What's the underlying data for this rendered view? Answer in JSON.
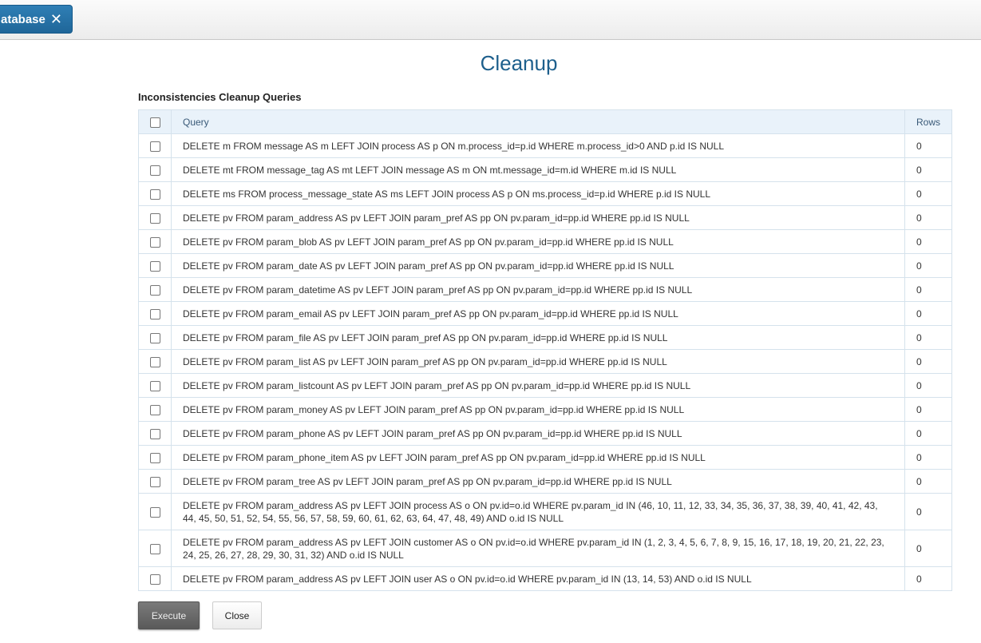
{
  "tab": {
    "label": "atabase",
    "close_icon": "close-icon"
  },
  "page_title": "Cleanup",
  "section_title": "Inconsistencies Cleanup Queries",
  "table": {
    "headers": {
      "query": "Query",
      "rows": "Rows"
    },
    "rows": [
      {
        "query": "DELETE m FROM message AS m LEFT JOIN process AS p ON m.process_id=p.id WHERE m.process_id>0 AND p.id IS NULL",
        "rows": "0"
      },
      {
        "query": "DELETE mt FROM message_tag AS mt LEFT JOIN message AS m ON mt.message_id=m.id WHERE m.id IS NULL",
        "rows": "0"
      },
      {
        "query": "DELETE ms FROM process_message_state AS ms LEFT JOIN process AS p ON ms.process_id=p.id WHERE p.id IS NULL",
        "rows": "0"
      },
      {
        "query": "DELETE pv FROM param_address AS pv LEFT JOIN param_pref AS pp ON pv.param_id=pp.id WHERE pp.id IS NULL",
        "rows": "0"
      },
      {
        "query": "DELETE pv FROM param_blob AS pv LEFT JOIN param_pref AS pp ON pv.param_id=pp.id WHERE pp.id IS NULL",
        "rows": "0"
      },
      {
        "query": "DELETE pv FROM param_date AS pv LEFT JOIN param_pref AS pp ON pv.param_id=pp.id WHERE pp.id IS NULL",
        "rows": "0"
      },
      {
        "query": "DELETE pv FROM param_datetime AS pv LEFT JOIN param_pref AS pp ON pv.param_id=pp.id WHERE pp.id IS NULL",
        "rows": "0"
      },
      {
        "query": "DELETE pv FROM param_email AS pv LEFT JOIN param_pref AS pp ON pv.param_id=pp.id WHERE pp.id IS NULL",
        "rows": "0"
      },
      {
        "query": "DELETE pv FROM param_file AS pv LEFT JOIN param_pref AS pp ON pv.param_id=pp.id WHERE pp.id IS NULL",
        "rows": "0"
      },
      {
        "query": "DELETE pv FROM param_list AS pv LEFT JOIN param_pref AS pp ON pv.param_id=pp.id WHERE pp.id IS NULL",
        "rows": "0"
      },
      {
        "query": "DELETE pv FROM param_listcount AS pv LEFT JOIN param_pref AS pp ON pv.param_id=pp.id WHERE pp.id IS NULL",
        "rows": "0"
      },
      {
        "query": "DELETE pv FROM param_money AS pv LEFT JOIN param_pref AS pp ON pv.param_id=pp.id WHERE pp.id IS NULL",
        "rows": "0"
      },
      {
        "query": "DELETE pv FROM param_phone AS pv LEFT JOIN param_pref AS pp ON pv.param_id=pp.id WHERE pp.id IS NULL",
        "rows": "0"
      },
      {
        "query": "DELETE pv FROM param_phone_item AS pv LEFT JOIN param_pref AS pp ON pv.param_id=pp.id WHERE pp.id IS NULL",
        "rows": "0"
      },
      {
        "query": "DELETE pv FROM param_tree AS pv LEFT JOIN param_pref AS pp ON pv.param_id=pp.id WHERE pp.id IS NULL",
        "rows": "0"
      },
      {
        "query": "DELETE pv FROM param_address AS pv LEFT JOIN process AS o ON pv.id=o.id WHERE pv.param_id IN (46, 10, 11, 12, 33, 34, 35, 36, 37, 38, 39, 40, 41, 42, 43, 44, 45, 50, 51, 52, 54, 55, 56, 57, 58, 59, 60, 61, 62, 63, 64, 47, 48, 49) AND o.id IS NULL",
        "rows": "0"
      },
      {
        "query": "DELETE pv FROM param_address AS pv LEFT JOIN customer AS o ON pv.id=o.id WHERE pv.param_id IN (1, 2, 3, 4, 5, 6, 7, 8, 9, 15, 16, 17, 18, 19, 20, 21, 22, 23, 24, 25, 26, 27, 28, 29, 30, 31, 32) AND o.id IS NULL",
        "rows": "0"
      },
      {
        "query": "DELETE pv FROM param_address AS pv LEFT JOIN user AS o ON pv.id=o.id WHERE pv.param_id IN (13, 14, 53) AND o.id IS NULL",
        "rows": "0"
      }
    ]
  },
  "buttons": {
    "execute": "Execute",
    "close": "Close"
  }
}
